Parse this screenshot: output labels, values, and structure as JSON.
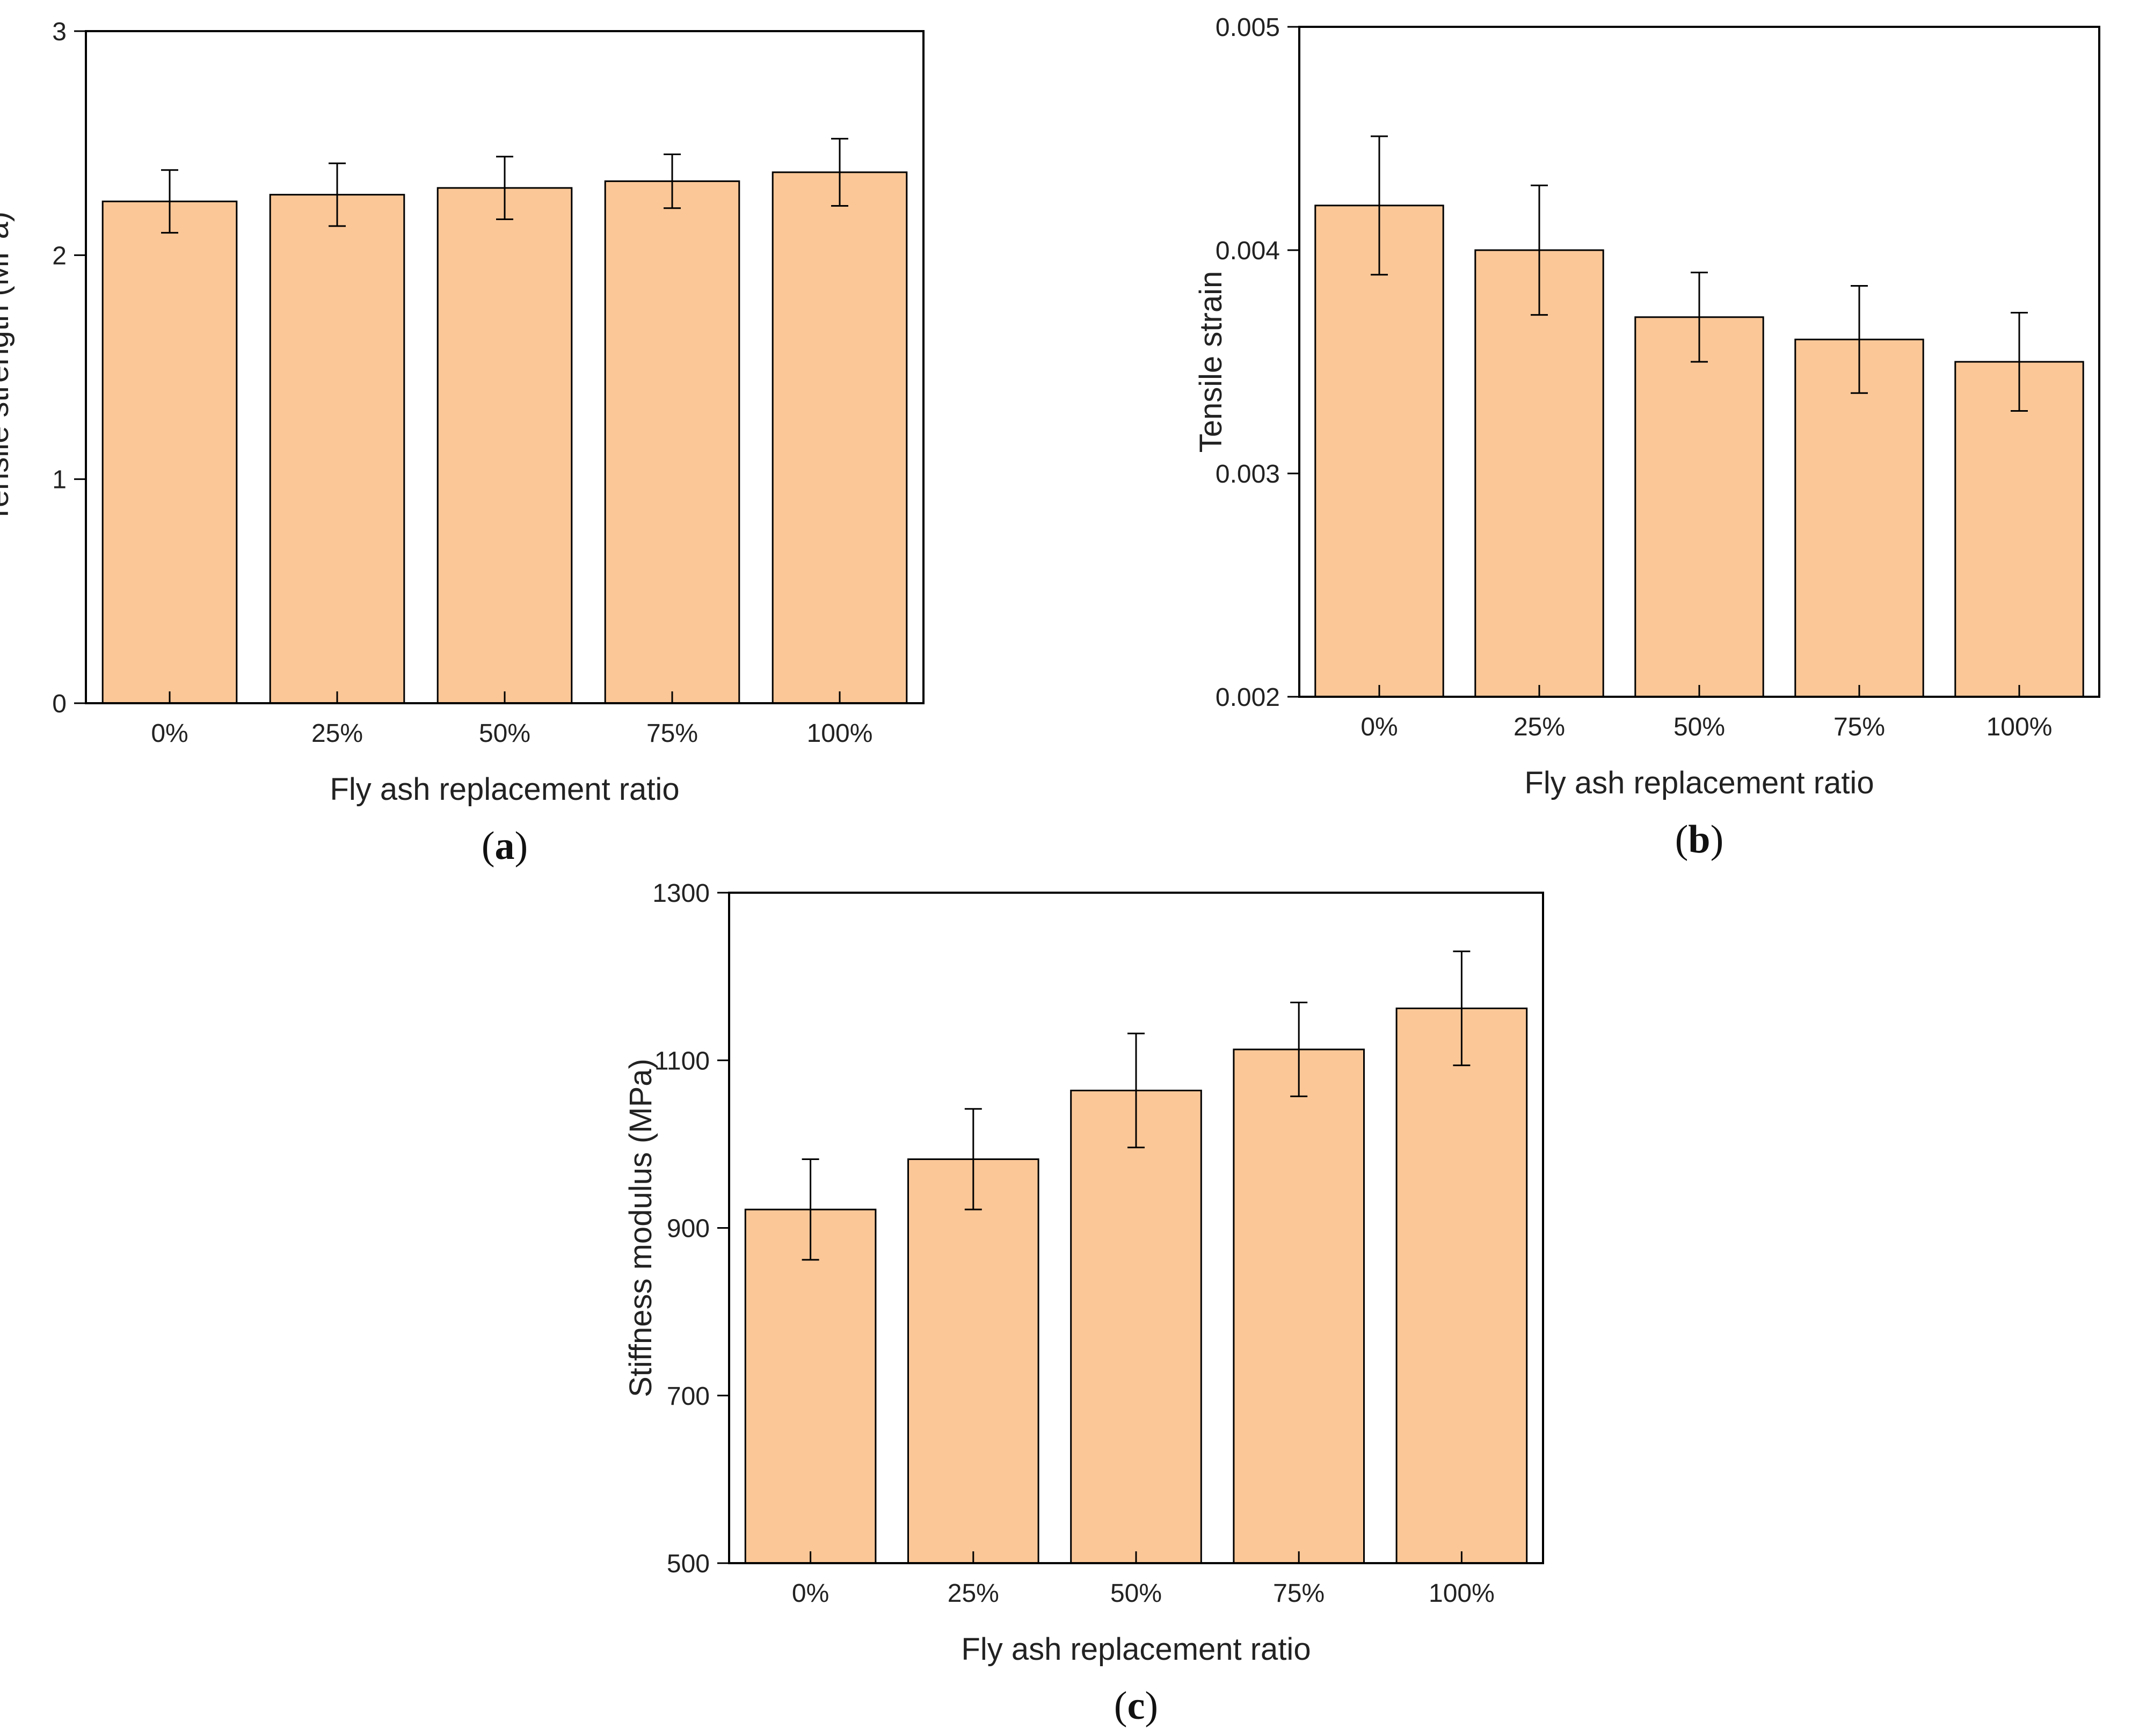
{
  "figure": {
    "bar_color": "#fbc797",
    "edge_color": "#000000",
    "background": "#ffffff"
  },
  "chart_data": [
    {
      "id": "a",
      "panel_label": "a",
      "type": "bar",
      "categories": [
        "0%",
        "25%",
        "50%",
        "75%",
        "100%"
      ],
      "values": [
        2.24,
        2.27,
        2.3,
        2.33,
        2.37
      ],
      "errors": [
        0.14,
        0.14,
        0.14,
        0.12,
        0.15
      ],
      "xlabel": "Fly ash replacement ratio",
      "ylabel": "Tensile strength (MPa)",
      "ylim": [
        0,
        3
      ],
      "yticks": [
        0,
        1,
        2,
        3
      ],
      "ytick_labels": [
        "0",
        "1",
        "2",
        "3"
      ],
      "grid": false
    },
    {
      "id": "b",
      "panel_label": "b",
      "type": "bar",
      "categories": [
        "0%",
        "25%",
        "50%",
        "75%",
        "100%"
      ],
      "values": [
        0.0042,
        0.004,
        0.0037,
        0.0036,
        0.0035
      ],
      "errors": [
        0.00031,
        0.00029,
        0.0002,
        0.00024,
        0.00022
      ],
      "xlabel": "Fly ash replacement ratio",
      "ylabel": "Tensile strain",
      "ylim": [
        0.002,
        0.005
      ],
      "yticks": [
        0.002,
        0.003,
        0.004,
        0.005
      ],
      "ytick_labels": [
        "0.002",
        "0.003",
        "0.004",
        "0.005"
      ],
      "grid": false
    },
    {
      "id": "c",
      "panel_label": "c",
      "type": "bar",
      "categories": [
        "0%",
        "25%",
        "50%",
        "75%",
        "100%"
      ],
      "values": [
        922,
        982,
        1064,
        1113,
        1162
      ],
      "errors": [
        60,
        60,
        68,
        56,
        68
      ],
      "xlabel": "Fly ash replacement ratio",
      "ylabel": "Stiffness modulus (MPa)",
      "ylim": [
        500,
        1300
      ],
      "yticks": [
        500,
        700,
        900,
        1100,
        1300
      ],
      "ytick_labels": [
        "500",
        "700",
        "900",
        "1100",
        "1300"
      ],
      "grid": false
    }
  ]
}
